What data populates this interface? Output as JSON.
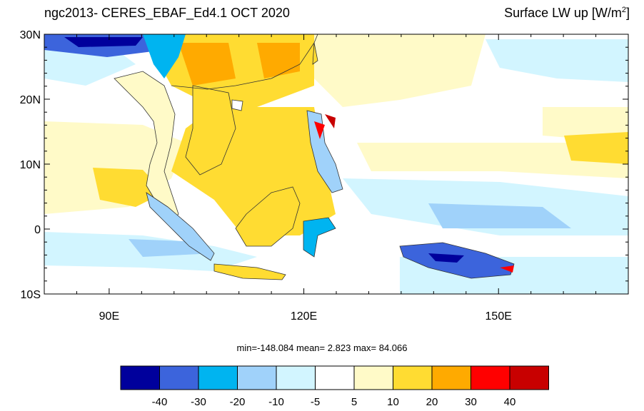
{
  "title": {
    "left": "ngc2013- CERES_EBAF_Ed4.1 OCT 2020",
    "right_main": "Surface LW up [W/m",
    "right_sup": "2",
    "right_end": "]"
  },
  "axes": {
    "lat_ticks": [
      {
        "label": "30N",
        "lat": 30
      },
      {
        "label": "20N",
        "lat": 20
      },
      {
        "label": "10N",
        "lat": 10
      },
      {
        "label": "0",
        "lat": 0
      },
      {
        "label": "10S",
        "lat": -10
      }
    ],
    "lon_ticks": [
      {
        "label": "90E",
        "lon": 90
      },
      {
        "label": "120E",
        "lon": 120
      },
      {
        "label": "150E",
        "lon": 150
      }
    ],
    "lon_range": [
      80,
      170
    ],
    "lat_range": [
      -10,
      30
    ]
  },
  "stats": {
    "min_label": "min=",
    "min": "-148.084",
    "mean_label": "mean=",
    "mean": "2.823",
    "max_label": "max=",
    "max": "84.066"
  },
  "colorbar": {
    "colors": [
      "#00009c",
      "#3c64dc",
      "#00b4f0",
      "#a0d2fa",
      "#d2f5ff",
      "#ffffff",
      "#fffac8",
      "#ffdc32",
      "#ffaa00",
      "#ff0000",
      "#c80000"
    ],
    "labels": [
      "-40",
      "-30",
      "-20",
      "-10",
      "-5",
      "5",
      "10",
      "20",
      "30",
      "40"
    ]
  }
}
